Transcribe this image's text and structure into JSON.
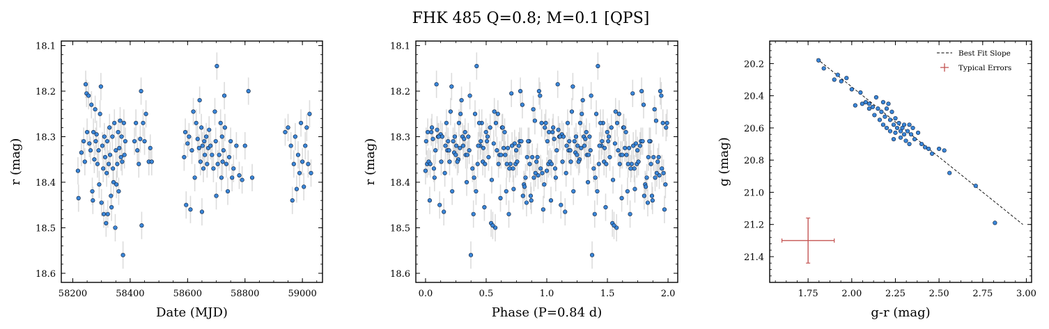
{
  "figure": {
    "title": "FHK 485  Q=0.8; M=0.1 [QPS]"
  },
  "colors": {
    "point_fill": "#3a86d8",
    "point_edge": "#0d1b33",
    "errorbar": "#d0d0d0",
    "fit_line": "#000000",
    "typical_error": "#c45553"
  },
  "chart_data": [
    {
      "type": "scatter",
      "name": "lightcurve",
      "xlabel": "Date (MJD)",
      "ylabel": "r (mag)",
      "xlim": [
        58160,
        59070
      ],
      "ylim": [
        18.62,
        18.09
      ],
      "y_inverted": true,
      "xticks": [
        58200,
        58400,
        58600,
        58800,
        59000
      ],
      "xtick_labels": [
        "58200",
        "58400",
        "58600",
        "58800",
        "59000"
      ],
      "yticks": [
        18.1,
        18.2,
        18.3,
        18.4,
        18.5,
        18.6
      ],
      "ytick_labels": [
        "18.1",
        "18.2",
        "18.3",
        "18.4",
        "18.5",
        "18.6"
      ],
      "typical_y_error": 0.03,
      "points": [
        {
          "x": 58218,
          "y": 18.375
        },
        {
          "x": 58220,
          "y": 18.435
        },
        {
          "x": 58230,
          "y": 18.335
        },
        {
          "x": 58238,
          "y": 18.31
        },
        {
          "x": 58242,
          "y": 18.355
        },
        {
          "x": 58245,
          "y": 18.185
        },
        {
          "x": 58248,
          "y": 18.205
        },
        {
          "x": 58250,
          "y": 18.29
        },
        {
          "x": 58255,
          "y": 18.21
        },
        {
          "x": 58258,
          "y": 18.315
        },
        {
          "x": 58262,
          "y": 18.33
        },
        {
          "x": 58265,
          "y": 18.23
        },
        {
          "x": 58268,
          "y": 18.42
        },
        {
          "x": 58270,
          "y": 18.44
        },
        {
          "x": 58272,
          "y": 18.29
        },
        {
          "x": 58275,
          "y": 18.35
        },
        {
          "x": 58278,
          "y": 18.24
        },
        {
          "x": 58280,
          "y": 18.31
        },
        {
          "x": 58283,
          "y": 18.295
        },
        {
          "x": 58286,
          "y": 18.36
        },
        {
          "x": 58290,
          "y": 18.33
        },
        {
          "x": 58292,
          "y": 18.405
        },
        {
          "x": 58295,
          "y": 18.25
        },
        {
          "x": 58298,
          "y": 18.19
        },
        {
          "x": 58300,
          "y": 18.445
        },
        {
          "x": 58303,
          "y": 18.32
        },
        {
          "x": 58306,
          "y": 18.37
        },
        {
          "x": 58308,
          "y": 18.47
        },
        {
          "x": 58310,
          "y": 18.3
        },
        {
          "x": 58313,
          "y": 18.345
        },
        {
          "x": 58316,
          "y": 18.49
        },
        {
          "x": 58318,
          "y": 18.38
        },
        {
          "x": 58320,
          "y": 18.31
        },
        {
          "x": 58322,
          "y": 18.47
        },
        {
          "x": 58325,
          "y": 18.36
        },
        {
          "x": 58328,
          "y": 18.28
        },
        {
          "x": 58330,
          "y": 18.34
        },
        {
          "x": 58333,
          "y": 18.43
        },
        {
          "x": 58335,
          "y": 18.455
        },
        {
          "x": 58338,
          "y": 18.3
        },
        {
          "x": 58340,
          "y": 18.37
        },
        {
          "x": 58342,
          "y": 18.4
        },
        {
          "x": 58345,
          "y": 18.27
        },
        {
          "x": 58348,
          "y": 18.5
        },
        {
          "x": 58350,
          "y": 18.33
        },
        {
          "x": 58352,
          "y": 18.405
        },
        {
          "x": 58355,
          "y": 18.36
        },
        {
          "x": 58358,
          "y": 18.29
        },
        {
          "x": 58360,
          "y": 18.42
        },
        {
          "x": 58362,
          "y": 18.325
        },
        {
          "x": 58365,
          "y": 18.265
        },
        {
          "x": 58368,
          "y": 18.345
        },
        {
          "x": 58370,
          "y": 18.3
        },
        {
          "x": 58372,
          "y": 18.355
        },
        {
          "x": 58375,
          "y": 18.56
        },
        {
          "x": 58378,
          "y": 18.27
        },
        {
          "x": 58380,
          "y": 18.34
        },
        {
          "x": 58383,
          "y": 18.31
        },
        {
          "x": 58415,
          "y": 18.31
        },
        {
          "x": 58420,
          "y": 18.27
        },
        {
          "x": 58425,
          "y": 18.33
        },
        {
          "x": 58430,
          "y": 18.36
        },
        {
          "x": 58435,
          "y": 18.305
        },
        {
          "x": 58438,
          "y": 18.2
        },
        {
          "x": 58440,
          "y": 18.495
        },
        {
          "x": 58445,
          "y": 18.27
        },
        {
          "x": 58450,
          "y": 18.31
        },
        {
          "x": 58455,
          "y": 18.25
        },
        {
          "x": 58465,
          "y": 18.355
        },
        {
          "x": 58470,
          "y": 18.325
        },
        {
          "x": 58475,
          "y": 18.355
        },
        {
          "x": 58588,
          "y": 18.345
        },
        {
          "x": 58592,
          "y": 18.29
        },
        {
          "x": 58595,
          "y": 18.45
        },
        {
          "x": 58600,
          "y": 18.315
        },
        {
          "x": 58605,
          "y": 18.3
        },
        {
          "x": 58610,
          "y": 18.46
        },
        {
          "x": 58615,
          "y": 18.33
        },
        {
          "x": 58620,
          "y": 18.245
        },
        {
          "x": 58625,
          "y": 18.39
        },
        {
          "x": 58630,
          "y": 18.27
        },
        {
          "x": 58635,
          "y": 18.305
        },
        {
          "x": 58640,
          "y": 18.325
        },
        {
          "x": 58642,
          "y": 18.22
        },
        {
          "x": 58645,
          "y": 18.355
        },
        {
          "x": 58648,
          "y": 18.28
        },
        {
          "x": 58650,
          "y": 18.465
        },
        {
          "x": 58652,
          "y": 18.32
        },
        {
          "x": 58655,
          "y": 18.37
        },
        {
          "x": 58658,
          "y": 18.31
        },
        {
          "x": 58660,
          "y": 18.34
        },
        {
          "x": 58665,
          "y": 18.3
        },
        {
          "x": 58668,
          "y": 18.36
        },
        {
          "x": 58672,
          "y": 18.325
        },
        {
          "x": 58675,
          "y": 18.285
        },
        {
          "x": 58680,
          "y": 18.32
        },
        {
          "x": 58685,
          "y": 18.34
        },
        {
          "x": 58690,
          "y": 18.37
        },
        {
          "x": 58695,
          "y": 18.245
        },
        {
          "x": 58698,
          "y": 18.31
        },
        {
          "x": 58700,
          "y": 18.43
        },
        {
          "x": 58702,
          "y": 18.145
        },
        {
          "x": 58705,
          "y": 18.36
        },
        {
          "x": 58710,
          "y": 18.34
        },
        {
          "x": 58715,
          "y": 18.27
        },
        {
          "x": 58718,
          "y": 18.39
        },
        {
          "x": 58720,
          "y": 18.3
        },
        {
          "x": 58722,
          "y": 18.355
        },
        {
          "x": 58725,
          "y": 18.33
        },
        {
          "x": 58728,
          "y": 18.21
        },
        {
          "x": 58730,
          "y": 18.28
        },
        {
          "x": 58735,
          "y": 18.36
        },
        {
          "x": 58740,
          "y": 18.42
        },
        {
          "x": 58745,
          "y": 18.345
        },
        {
          "x": 58750,
          "y": 18.31
        },
        {
          "x": 58755,
          "y": 18.39
        },
        {
          "x": 58760,
          "y": 18.37
        },
        {
          "x": 58770,
          "y": 18.32
        },
        {
          "x": 58780,
          "y": 18.385
        },
        {
          "x": 58790,
          "y": 18.395
        },
        {
          "x": 58800,
          "y": 18.32
        },
        {
          "x": 58812,
          "y": 18.2
        },
        {
          "x": 58825,
          "y": 18.39
        },
        {
          "x": 58940,
          "y": 18.29
        },
        {
          "x": 58950,
          "y": 18.28
        },
        {
          "x": 58960,
          "y": 18.32
        },
        {
          "x": 58965,
          "y": 18.44
        },
        {
          "x": 58970,
          "y": 18.36
        },
        {
          "x": 58975,
          "y": 18.3
        },
        {
          "x": 58980,
          "y": 18.415
        },
        {
          "x": 58985,
          "y": 18.34
        },
        {
          "x": 58990,
          "y": 18.38
        },
        {
          "x": 58995,
          "y": 18.27
        },
        {
          "x": 59000,
          "y": 18.355
        },
        {
          "x": 59005,
          "y": 18.41
        },
        {
          "x": 59010,
          "y": 18.32
        },
        {
          "x": 59015,
          "y": 18.28
        },
        {
          "x": 59020,
          "y": 18.36
        },
        {
          "x": 59025,
          "y": 18.25
        },
        {
          "x": 59030,
          "y": 18.38
        }
      ]
    },
    {
      "type": "scatter",
      "name": "phase-folded",
      "xlabel": "Phase (P=0.84 d)",
      "ylabel": "r (mag)",
      "xlim": [
        -0.08,
        2.08
      ],
      "ylim": [
        18.62,
        18.09
      ],
      "y_inverted": true,
      "xticks": [
        0.0,
        0.5,
        1.0,
        1.5,
        2.0
      ],
      "xtick_labels": [
        "0.0",
        "0.5",
        "1.0",
        "1.5",
        "2.0"
      ],
      "yticks": [
        18.1,
        18.2,
        18.3,
        18.4,
        18.5,
        18.6
      ],
      "ytick_labels": [
        "18.1",
        "18.2",
        "18.3",
        "18.4",
        "18.5",
        "18.6"
      ],
      "typical_y_error": 0.03,
      "phased_from_lightcurve": true
    },
    {
      "type": "scatter",
      "name": "color-magnitude",
      "xlabel": "g-r (mag)",
      "ylabel": "g (mag)",
      "xlim": [
        1.53,
        3.03
      ],
      "ylim": [
        21.56,
        20.06
      ],
      "y_inverted": true,
      "xticks": [
        1.75,
        2.0,
        2.25,
        2.5,
        2.75,
        3.0
      ],
      "xtick_labels": [
        "1.75",
        "2.00",
        "2.25",
        "2.50",
        "2.75",
        "3.00"
      ],
      "yticks": [
        20.2,
        20.4,
        20.6,
        20.8,
        21.0,
        21.2,
        21.4
      ],
      "ytick_labels": [
        "20.2",
        "20.4",
        "20.6",
        "20.8",
        "21.0",
        "21.2",
        "21.4"
      ],
      "legend": {
        "position": "top-right",
        "entries": [
          "Best Fit Slope",
          "Typical Errors"
        ]
      },
      "fit_line": {
        "x": [
          1.8,
          2.98
        ],
        "y": [
          20.17,
          21.2
        ]
      },
      "typical_error": {
        "x": 1.75,
        "y": 21.3,
        "xerr": 0.15,
        "yerr": 0.14
      },
      "points": [
        {
          "x": 1.81,
          "y": 20.18
        },
        {
          "x": 1.84,
          "y": 20.23
        },
        {
          "x": 1.9,
          "y": 20.3
        },
        {
          "x": 1.92,
          "y": 20.27
        },
        {
          "x": 1.94,
          "y": 20.31
        },
        {
          "x": 1.97,
          "y": 20.29
        },
        {
          "x": 2.0,
          "y": 20.36
        },
        {
          "x": 2.02,
          "y": 20.46
        },
        {
          "x": 2.05,
          "y": 20.38
        },
        {
          "x": 2.06,
          "y": 20.45
        },
        {
          "x": 2.08,
          "y": 20.44
        },
        {
          "x": 2.1,
          "y": 20.45
        },
        {
          "x": 2.12,
          "y": 20.47
        },
        {
          "x": 2.13,
          "y": 20.52
        },
        {
          "x": 2.14,
          "y": 20.41
        },
        {
          "x": 2.15,
          "y": 20.48
        },
        {
          "x": 2.16,
          "y": 20.55
        },
        {
          "x": 2.17,
          "y": 20.5
        },
        {
          "x": 2.18,
          "y": 20.44
        },
        {
          "x": 2.18,
          "y": 20.58
        },
        {
          "x": 2.19,
          "y": 20.53
        },
        {
          "x": 2.2,
          "y": 20.48
        },
        {
          "x": 2.2,
          "y": 20.6
        },
        {
          "x": 2.21,
          "y": 20.45
        },
        {
          "x": 2.22,
          "y": 20.55
        },
        {
          "x": 2.22,
          "y": 20.62
        },
        {
          "x": 2.23,
          "y": 20.5
        },
        {
          "x": 2.24,
          "y": 20.58
        },
        {
          "x": 2.25,
          "y": 20.54
        },
        {
          "x": 2.25,
          "y": 20.63
        },
        {
          "x": 2.26,
          "y": 20.6
        },
        {
          "x": 2.27,
          "y": 20.57
        },
        {
          "x": 2.28,
          "y": 20.62
        },
        {
          "x": 2.28,
          "y": 20.66
        },
        {
          "x": 2.29,
          "y": 20.6
        },
        {
          "x": 2.3,
          "y": 20.64
        },
        {
          "x": 2.3,
          "y": 20.58
        },
        {
          "x": 2.31,
          "y": 20.68
        },
        {
          "x": 2.32,
          "y": 20.62
        },
        {
          "x": 2.33,
          "y": 20.58
        },
        {
          "x": 2.33,
          "y": 20.7
        },
        {
          "x": 2.34,
          "y": 20.64
        },
        {
          "x": 2.35,
          "y": 20.6
        },
        {
          "x": 2.36,
          "y": 20.67
        },
        {
          "x": 2.38,
          "y": 20.63
        },
        {
          "x": 2.4,
          "y": 20.7
        },
        {
          "x": 2.42,
          "y": 20.72
        },
        {
          "x": 2.44,
          "y": 20.73
        },
        {
          "x": 2.46,
          "y": 20.76
        },
        {
          "x": 2.5,
          "y": 20.73
        },
        {
          "x": 2.53,
          "y": 20.74
        },
        {
          "x": 2.56,
          "y": 20.88
        },
        {
          "x": 2.71,
          "y": 20.96
        },
        {
          "x": 2.82,
          "y": 21.19
        },
        {
          "x": 2.1,
          "y": 20.48
        },
        {
          "x": 2.24,
          "y": 20.67
        }
      ]
    }
  ]
}
